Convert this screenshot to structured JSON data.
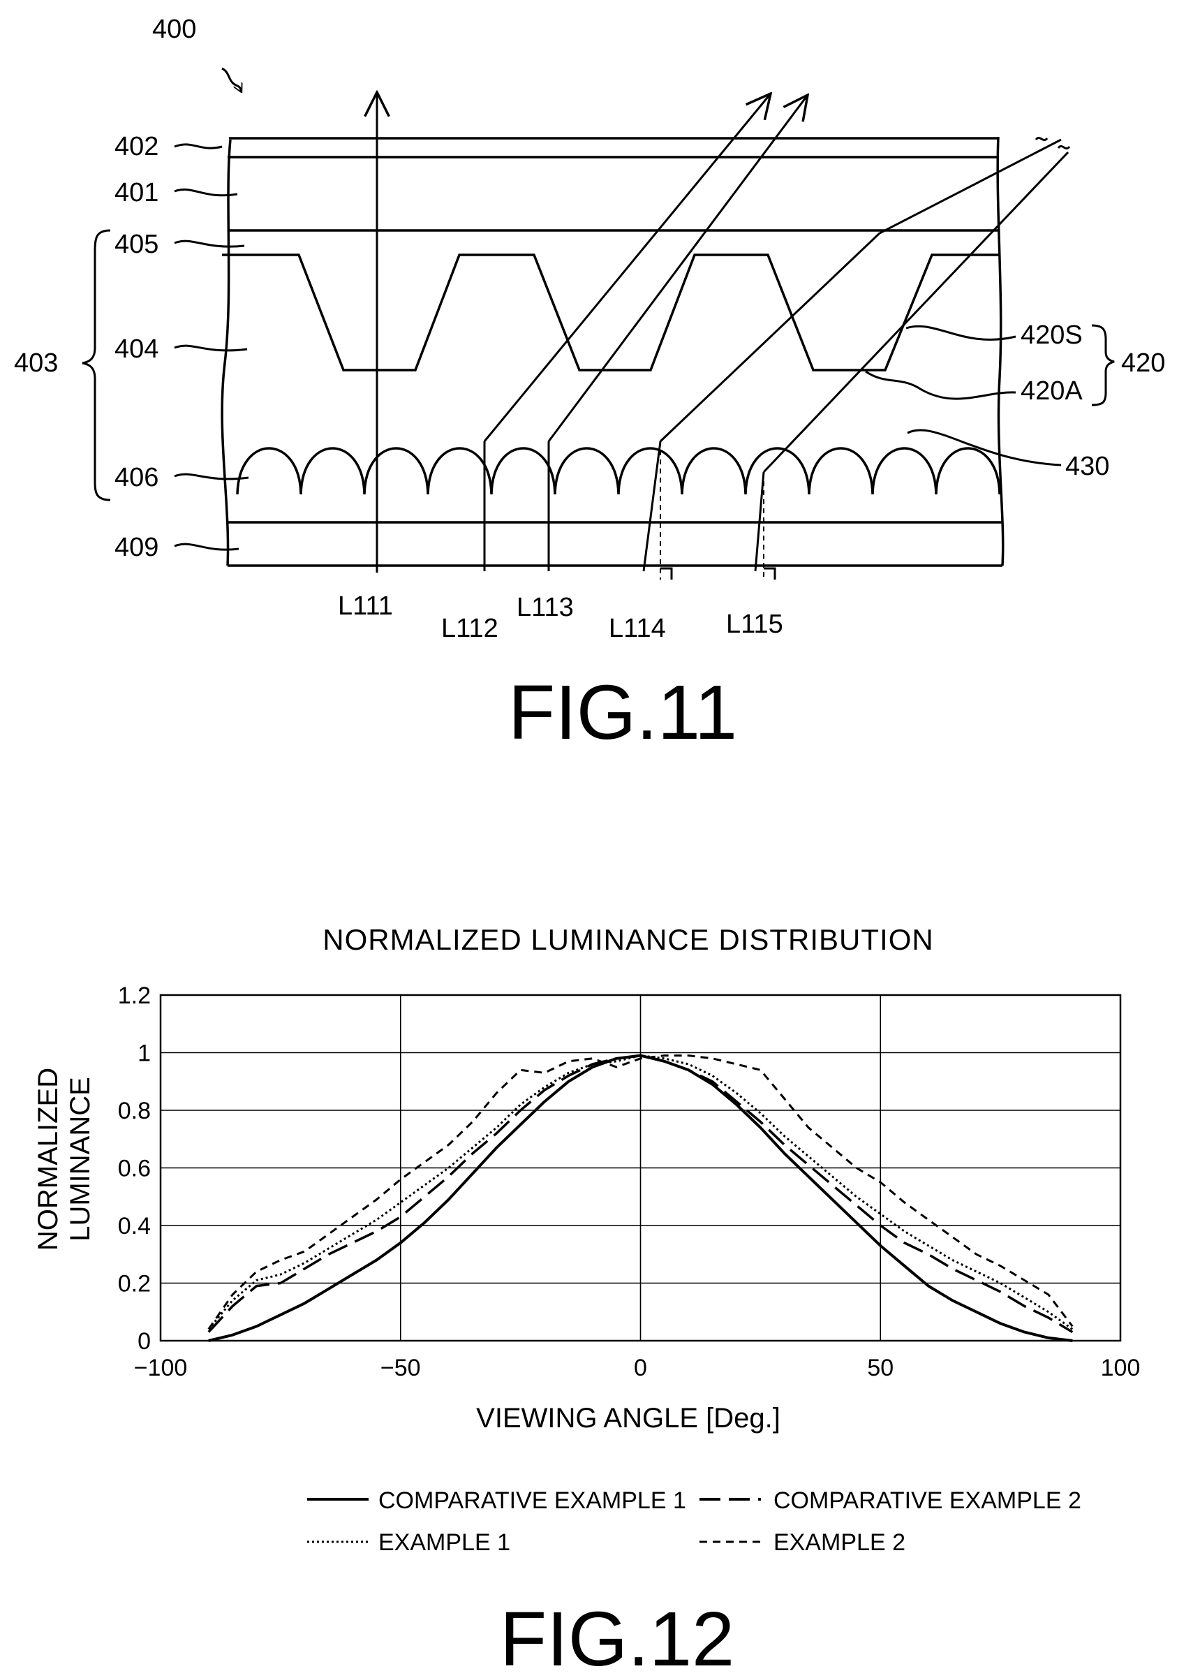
{
  "fig11": {
    "ref": "400",
    "layers": {
      "l402": "402",
      "l401": "401",
      "l405": "405",
      "l404": "404",
      "l403": "403",
      "l406": "406",
      "l409": "409"
    },
    "parts": {
      "p420s": "420S",
      "p420a": "420A",
      "p420": "420",
      "p430": "430"
    },
    "rays": [
      "L111",
      "L112",
      "L113",
      "L114",
      "L115"
    ],
    "caption": "FIG.11"
  },
  "fig12": {
    "caption": "FIG.12",
    "legend": {
      "comp1": "COMPARATIVE EXAMPLE 1",
      "comp2": "COMPARATIVE EXAMPLE 2",
      "ex1": "EXAMPLE 1",
      "ex2": "EXAMPLE 2"
    }
  },
  "chart_data": {
    "type": "line",
    "title": "NORMALIZED LUMINANCE DISTRIBUTION",
    "xlabel": "VIEWING ANGLE [Deg.]",
    "ylabel_line1": "NORMALIZED",
    "ylabel_line2": "LUMINANCE",
    "xlim": [
      -100,
      100
    ],
    "ylim": [
      0,
      1.2
    ],
    "xticks": [
      "−100",
      "−50",
      "0",
      "50",
      "100"
    ],
    "xtick_values": [
      -100,
      -50,
      0,
      50,
      100
    ],
    "yticks": [
      "0",
      "0.2",
      "0.4",
      "0.6",
      "0.8",
      "1",
      "1.2"
    ],
    "ytick_values": [
      0,
      0.2,
      0.4,
      0.6,
      0.8,
      1.0,
      1.2
    ],
    "grid": true,
    "legend_position": "bottom",
    "series": [
      {
        "name": "COMPARATIVE EXAMPLE 1",
        "style": "solid",
        "x": [
          -90,
          -85,
          -80,
          -75,
          -70,
          -65,
          -60,
          -55,
          -50,
          -45,
          -40,
          -35,
          -30,
          -25,
          -20,
          -15,
          -10,
          -5,
          0,
          5,
          10,
          15,
          20,
          25,
          30,
          35,
          40,
          45,
          50,
          55,
          60,
          65,
          70,
          75,
          80,
          85,
          90
        ],
        "y": [
          0.0,
          0.02,
          0.05,
          0.09,
          0.13,
          0.18,
          0.23,
          0.28,
          0.34,
          0.41,
          0.49,
          0.58,
          0.67,
          0.75,
          0.83,
          0.9,
          0.95,
          0.98,
          0.99,
          0.97,
          0.94,
          0.89,
          0.82,
          0.74,
          0.65,
          0.57,
          0.49,
          0.41,
          0.33,
          0.26,
          0.19,
          0.14,
          0.1,
          0.06,
          0.03,
          0.01,
          0.0
        ]
      },
      {
        "name": "COMPARATIVE EXAMPLE 2",
        "style": "longdash",
        "x": [
          -90,
          -85,
          -80,
          -75,
          -70,
          -65,
          -60,
          -55,
          -50,
          -45,
          -40,
          -35,
          -30,
          -25,
          -20,
          -15,
          -10,
          -5,
          0,
          5,
          10,
          15,
          20,
          25,
          30,
          35,
          40,
          45,
          50,
          55,
          60,
          65,
          70,
          75,
          80,
          85,
          90
        ],
        "y": [
          0.03,
          0.12,
          0.19,
          0.2,
          0.25,
          0.3,
          0.34,
          0.38,
          0.43,
          0.5,
          0.57,
          0.65,
          0.72,
          0.8,
          0.87,
          0.92,
          0.96,
          0.98,
          0.99,
          0.97,
          0.94,
          0.9,
          0.83,
          0.76,
          0.68,
          0.61,
          0.54,
          0.47,
          0.4,
          0.34,
          0.3,
          0.25,
          0.21,
          0.17,
          0.12,
          0.08,
          0.03
        ]
      },
      {
        "name": "EXAMPLE 1",
        "style": "dotted",
        "x": [
          -90,
          -85,
          -80,
          -75,
          -70,
          -65,
          -60,
          -55,
          -50,
          -45,
          -40,
          -35,
          -30,
          -25,
          -20,
          -15,
          -10,
          -5,
          0,
          5,
          10,
          15,
          20,
          25,
          30,
          35,
          40,
          45,
          50,
          55,
          60,
          65,
          70,
          75,
          80,
          85,
          90
        ],
        "y": [
          0.04,
          0.14,
          0.21,
          0.23,
          0.27,
          0.32,
          0.37,
          0.42,
          0.48,
          0.54,
          0.6,
          0.67,
          0.74,
          0.82,
          0.88,
          0.93,
          0.96,
          0.97,
          0.99,
          0.98,
          0.96,
          0.92,
          0.86,
          0.79,
          0.71,
          0.64,
          0.57,
          0.5,
          0.44,
          0.38,
          0.33,
          0.28,
          0.24,
          0.2,
          0.15,
          0.1,
          0.04
        ]
      },
      {
        "name": "EXAMPLE 2",
        "style": "dashed",
        "x": [
          -90,
          -85,
          -80,
          -75,
          -70,
          -65,
          -60,
          -55,
          -50,
          -45,
          -40,
          -35,
          -30,
          -25,
          -20,
          -15,
          -10,
          -5,
          0,
          5,
          10,
          15,
          20,
          25,
          30,
          35,
          40,
          45,
          50,
          55,
          60,
          65,
          70,
          75,
          80,
          85,
          90
        ],
        "y": [
          0.04,
          0.16,
          0.24,
          0.28,
          0.31,
          0.37,
          0.43,
          0.49,
          0.56,
          0.62,
          0.68,
          0.76,
          0.86,
          0.94,
          0.93,
          0.97,
          0.98,
          0.95,
          0.98,
          0.99,
          0.99,
          0.98,
          0.96,
          0.94,
          0.84,
          0.74,
          0.67,
          0.6,
          0.55,
          0.48,
          0.42,
          0.36,
          0.3,
          0.26,
          0.21,
          0.16,
          0.05
        ]
      }
    ]
  }
}
